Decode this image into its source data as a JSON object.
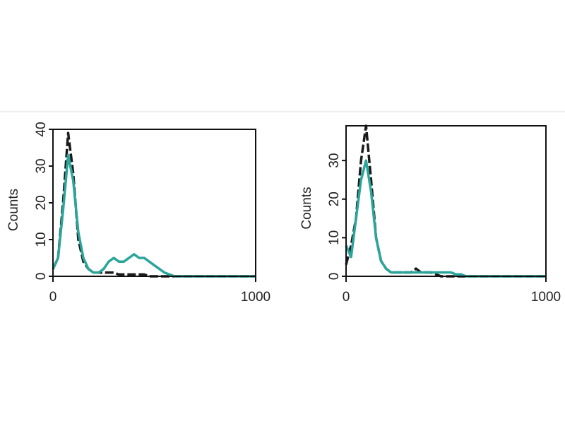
{
  "chart_data": [
    {
      "type": "line",
      "ylabel": "Counts",
      "x": [
        0,
        25,
        50,
        75,
        100,
        125,
        150,
        175,
        200,
        225,
        250,
        275,
        300,
        325,
        350,
        375,
        400,
        425,
        450,
        475,
        500,
        525,
        550,
        575,
        600,
        625,
        650,
        675,
        700,
        725,
        750,
        775,
        800,
        825,
        850,
        875,
        900,
        925,
        950,
        975,
        1000
      ],
      "xlim": [
        0,
        1000
      ],
      "xticks": [
        0,
        1000
      ],
      "ylim": [
        0,
        40
      ],
      "yticks": [
        0,
        10,
        20,
        30,
        40
      ],
      "series": [
        {
          "color": "#1a1a1a",
          "dashed": true,
          "values": [
            2,
            5,
            20,
            39,
            28,
            10,
            4,
            2,
            1,
            1,
            1,
            1,
            1,
            0.5,
            0.5,
            0.5,
            0.5,
            0.5,
            0.5,
            0,
            0,
            0,
            0,
            0,
            0,
            0,
            0,
            0,
            0,
            0,
            0,
            0,
            0,
            0,
            0,
            0,
            0,
            0,
            0,
            0,
            0
          ]
        },
        {
          "color": "#2aa59a",
          "dashed": false,
          "values": [
            2,
            5,
            18,
            33,
            26,
            12,
            5,
            2,
            1,
            1,
            2,
            4,
            5,
            4,
            4,
            5,
            6,
            5,
            5,
            4,
            3,
            2,
            1,
            0.5,
            0,
            0,
            0,
            0,
            0,
            0,
            0,
            0,
            0,
            0,
            0,
            0,
            0,
            0,
            0,
            0,
            0
          ]
        }
      ]
    },
    {
      "type": "line",
      "ylabel": "Counts",
      "x": [
        0,
        25,
        50,
        75,
        100,
        125,
        150,
        175,
        200,
        225,
        250,
        275,
        300,
        325,
        350,
        375,
        400,
        425,
        450,
        475,
        500,
        525,
        550,
        575,
        600,
        625,
        650,
        675,
        700,
        725,
        750,
        775,
        800,
        825,
        850,
        875,
        900,
        925,
        950,
        975,
        1000
      ],
      "xlim": [
        0,
        1000
      ],
      "xticks": [
        0,
        1000
      ],
      "ylim": [
        0,
        39
      ],
      "yticks": [
        0,
        10,
        20,
        30
      ],
      "series": [
        {
          "color": "#1a1a1a",
          "dashed": true,
          "values": [
            3,
            8,
            15,
            30,
            39,
            25,
            10,
            4,
            2,
            1,
            1,
            1,
            1,
            1,
            2,
            1,
            1,
            1,
            0.5,
            0,
            0,
            0,
            0,
            0,
            0,
            0,
            0,
            0,
            0,
            0,
            0,
            0,
            0,
            0,
            0,
            0,
            0,
            0,
            0,
            0,
            0
          ]
        },
        {
          "color": "#2aa59a",
          "dashed": false,
          "values": [
            8,
            5,
            15,
            25,
            30,
            22,
            10,
            4,
            2,
            1,
            1,
            1,
            1,
            1,
            1,
            1,
            1,
            1,
            1,
            1,
            1,
            1,
            0.5,
            0.5,
            0,
            0,
            0,
            0,
            0,
            0,
            0,
            0,
            0,
            0,
            0,
            0,
            0,
            0,
            0,
            0,
            0
          ]
        }
      ]
    }
  ]
}
